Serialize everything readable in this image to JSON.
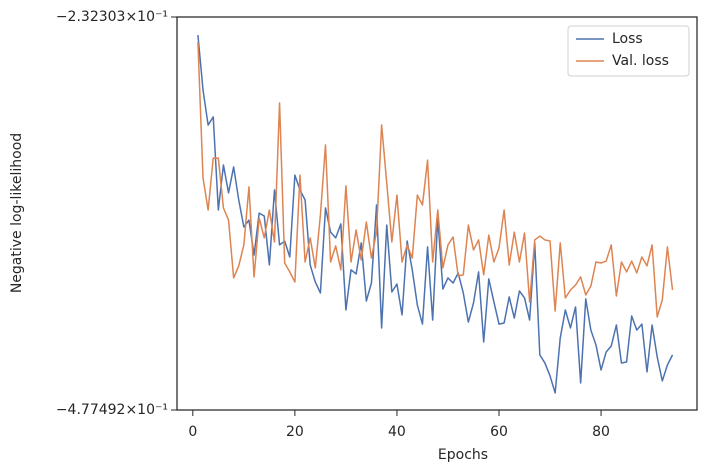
{
  "chart_data": {
    "type": "line",
    "xlabel": "Epochs",
    "ylabel": "Negative log-likelihood",
    "x": [
      1,
      2,
      3,
      4,
      5,
      6,
      7,
      8,
      9,
      10,
      11,
      12,
      13,
      14,
      15,
      16,
      17,
      18,
      19,
      20,
      21,
      22,
      23,
      24,
      25,
      26,
      27,
      28,
      29,
      30,
      31,
      32,
      33,
      34,
      35,
      36,
      37,
      38,
      39,
      40,
      41,
      42,
      43,
      44,
      45,
      46,
      47,
      48,
      49,
      50,
      51,
      52,
      53,
      54,
      55,
      56,
      57,
      58,
      59,
      60,
      61,
      62,
      63,
      64,
      65,
      66,
      67,
      68,
      69,
      70,
      71,
      72,
      73,
      74,
      75,
      76,
      77,
      78,
      79,
      80,
      81,
      82,
      83,
      84,
      85,
      86,
      87,
      88,
      89,
      90,
      91,
      92,
      93,
      94
    ],
    "series": [
      {
        "name": "Loss",
        "color": "#4c72b0",
        "values": [
          -0.2401,
          -0.2656,
          -0.2832,
          -0.279,
          -0.3309,
          -0.3047,
          -0.3207,
          -0.3058,
          -0.3249,
          -0.3414,
          -0.3371,
          -0.3594,
          -0.3328,
          -0.3346,
          -0.366,
          -0.319,
          -0.3528,
          -0.3503,
          -0.3607,
          -0.3104,
          -0.319,
          -0.3249,
          -0.366,
          -0.3776,
          -0.3853,
          -0.3297,
          -0.3446,
          -0.3483,
          -0.3395,
          -0.3975,
          -0.3693,
          -0.3721,
          -0.3515,
          -0.391,
          -0.3783,
          -0.3279,
          -0.4108,
          -0.3402,
          -0.3846,
          -0.379,
          -0.4011,
          -0.3503,
          -0.3693,
          -0.3939,
          -0.4079,
          -0.3541,
          -0.4049,
          -0.3358,
          -0.3825,
          -0.3748,
          -0.3783,
          -0.3714,
          -0.3853,
          -0.4064,
          -0.3924,
          -0.3707,
          -0.4215,
          -0.3755,
          -0.3917,
          -0.4079,
          -0.4071,
          -0.3881,
          -0.4034,
          -0.3839,
          -0.3888,
          -0.4049,
          -0.3515,
          -0.4316,
          -0.4381,
          -0.4486,
          -0.4628,
          -0.4184,
          -0.3975,
          -0.4108,
          -0.3953,
          -0.4544,
          -0.3895,
          -0.4124,
          -0.4238,
          -0.4437,
          -0.4293,
          -0.4246,
          -0.4086,
          -0.4381,
          -0.4373,
          -0.4019,
          -0.4124,
          -0.4079,
          -0.4453,
          -0.4086,
          -0.4332,
          -0.4527,
          -0.4397,
          -0.4316
        ]
      },
      {
        "name": "Val. loss",
        "color": "#dd8452",
        "values": [
          -0.2432,
          -0.3121,
          -0.3309,
          -0.3009,
          -0.3009,
          -0.3297,
          -0.3371,
          -0.3748,
          -0.3666,
          -0.3528,
          -0.3172,
          -0.3741,
          -0.3358,
          -0.3483,
          -0.3309,
          -0.3509,
          -0.272,
          -0.3647,
          -0.3707,
          -0.3776,
          -0.3104,
          -0.364,
          -0.3483,
          -0.368,
          -0.334,
          -0.2937,
          -0.364,
          -0.3534,
          -0.3693,
          -0.3166,
          -0.364,
          -0.3433,
          -0.3627,
          -0.3383,
          -0.3614,
          -0.3446,
          -0.2832,
          -0.3149,
          -0.3509,
          -0.322,
          -0.364,
          -0.3528,
          -0.3614,
          -0.322,
          -0.3279,
          -0.302,
          -0.364,
          -0.3309,
          -0.368,
          -0.3528,
          -0.3477,
          -0.3734,
          -0.3727,
          -0.3402,
          -0.3561,
          -0.3496,
          -0.3727,
          -0.3465,
          -0.364,
          -0.3548,
          -0.3309,
          -0.366,
          -0.3446,
          -0.364,
          -0.3452,
          -0.3917,
          -0.3496,
          -0.3471,
          -0.3496,
          -0.3503,
          -0.3983,
          -0.3515,
          -0.3888,
          -0.3832,
          -0.3797,
          -0.3741,
          -0.3867,
          -0.3804,
          -0.364,
          -0.3647,
          -0.3634,
          -0.3528,
          -0.3874,
          -0.364,
          -0.3707,
          -0.3634,
          -0.3714,
          -0.3607,
          -0.3666,
          -0.3528,
          -0.4026,
          -0.3902,
          -0.3541,
          -0.3832
        ]
      }
    ],
    "xlim": [
      -3.1,
      98.8
    ],
    "xticks": [
      0,
      20,
      40,
      60,
      80
    ],
    "ylim": [
      -0.477492,
      -0.232303
    ],
    "log_y": true,
    "yticks": [
      {
        "value": -0.477492,
        "label": "−4.77492×10⁻¹"
      },
      {
        "value": -0.232303,
        "label": "−2.32303×10⁻¹"
      }
    ],
    "grid": false,
    "legend": "upper right"
  }
}
